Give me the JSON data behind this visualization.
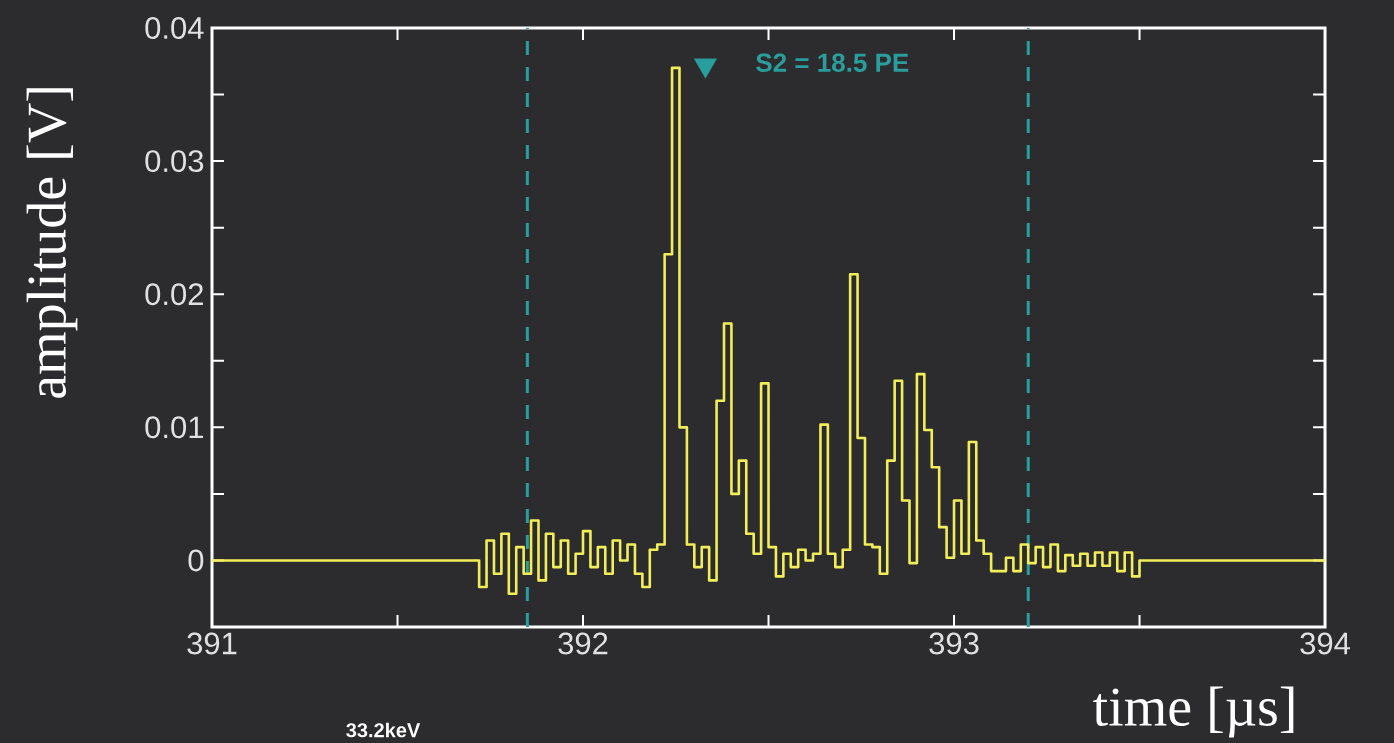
{
  "chart_data": {
    "type": "step",
    "xlabel": "time [µs]",
    "ylabel": "amplitude [V]",
    "xlim": [
      391,
      394
    ],
    "ylim": [
      -0.005,
      0.04
    ],
    "xticks": [
      391,
      {
        "value": 391.5,
        "label": null
      },
      392,
      {
        "value": 392.5,
        "label": null
      },
      393,
      {
        "value": 393.5,
        "label": null
      },
      394
    ],
    "yticks": [
      0,
      {
        "value": 0.005,
        "label": null
      },
      0.01,
      {
        "value": 0.015,
        "label": null
      },
      0.02,
      {
        "value": 0.025,
        "label": null
      },
      0.03,
      {
        "value": 0.035,
        "label": null
      },
      0.04
    ],
    "grid": false,
    "series": [
      {
        "color": "#f2ee5a",
        "x": [
          391,
          391.72,
          391.74,
          391.76,
          391.78,
          391.8,
          391.82,
          391.84,
          391.86,
          391.88,
          391.9,
          391.92,
          391.94,
          391.96,
          391.98,
          392.0,
          392.02,
          392.04,
          392.06,
          392.08,
          392.1,
          392.12,
          392.14,
          392.16,
          392.18,
          392.2,
          392.22,
          392.24,
          392.26,
          392.28,
          392.3,
          392.32,
          392.34,
          392.36,
          392.38,
          392.4,
          392.42,
          392.44,
          392.46,
          392.48,
          392.5,
          392.52,
          392.54,
          392.56,
          392.58,
          392.6,
          392.62,
          392.64,
          392.66,
          392.68,
          392.7,
          392.72,
          392.74,
          392.76,
          392.78,
          392.8,
          392.82,
          392.84,
          392.86,
          392.88,
          392.9,
          392.92,
          392.94,
          392.96,
          392.98,
          393.0,
          393.02,
          393.04,
          393.06,
          393.08,
          393.1,
          393.12,
          393.14,
          393.16,
          393.18,
          393.2,
          393.22,
          393.24,
          393.26,
          393.28,
          393.3,
          393.32,
          393.34,
          393.36,
          393.38,
          393.4,
          393.42,
          393.44,
          393.46,
          393.48,
          393.5,
          394
        ],
        "values": [
          0,
          -0.002,
          0.0015,
          -0.001,
          0.002,
          -0.0025,
          0.001,
          -0.001,
          0.003,
          -0.0015,
          0.002,
          -0.0005,
          0.0015,
          -0.001,
          0.0005,
          0.0022,
          -0.0005,
          0.001,
          -0.001,
          0.0015,
          0,
          0.0012,
          -0.001,
          -0.002,
          0.0008,
          0.0012,
          0.023,
          0.037,
          0.01,
          0.0012,
          -0.0005,
          0.001,
          -0.0015,
          0.012,
          0.0178,
          0.005,
          0.0075,
          0.002,
          0.0005,
          0.0133,
          0.001,
          -0.0012,
          0.0005,
          -0.0005,
          0.0008,
          0,
          0.0005,
          0.0102,
          0.0005,
          -0.0005,
          0.0008,
          0.0215,
          0.0092,
          0.0012,
          0.001,
          -0.001,
          0.0075,
          0.0135,
          0.0045,
          -0.0002,
          0.014,
          0.0098,
          0.007,
          0.0025,
          0.0002,
          0.0045,
          0.0005,
          0.0089,
          0.0015,
          0.0005,
          -0.0008,
          -0.0008,
          0.0002,
          -0.0008,
          0.0012,
          -0.0002,
          0.001,
          -0.0005,
          0.0012,
          -0.0008,
          0.0004,
          -0.0004,
          0.0005,
          -0.0004,
          0.0006,
          -0.0004,
          0.0006,
          -0.0008,
          0.0006,
          -0.0012,
          0,
          0
        ]
      },
      {
        "type": "scatter",
        "marker": "triangle",
        "color": "#2a9d9d",
        "x": [
          392.33
        ],
        "values": [
          0.0372
        ]
      }
    ],
    "ref_lines": [
      {
        "axis": "x",
        "value": 391.85,
        "color": "#2a9d9d",
        "line_style": "dashed"
      },
      {
        "axis": "x",
        "value": 393.2,
        "color": "#2a9d9d",
        "line_style": "dashed"
      }
    ],
    "annotations": [
      "S2 = 18.5 PE",
      "33.2keV"
    ]
  }
}
